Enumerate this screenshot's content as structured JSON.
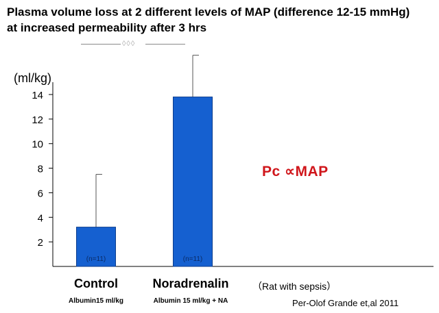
{
  "title": "Plasma volume loss at 2 different levels of MAP (difference 12-15 mmHg) at increased permeability after 3 hrs",
  "significance_marker": "◊◊◊",
  "unit_label": "(ml/kg)",
  "callout": "Pc ∝MAP",
  "groups": [
    {
      "name": "Control",
      "sub": "Albumin15 ml/kg"
    },
    {
      "name": "Noradrenalin",
      "sub": "Albumin 15 ml/kg + NA"
    }
  ],
  "note": "（Rat with sepsis）",
  "citation": "Per-Olof Grande et,al 2011",
  "colors": {
    "bar": "#1560d0",
    "bar_edge": "#0b3c8c",
    "callout": "#d0161b"
  },
  "chart_data": {
    "type": "bar",
    "categories": [
      "Control",
      "Noradrenalin"
    ],
    "values": [
      3.2,
      13.8
    ],
    "error_upper": [
      7.5,
      17.2
    ],
    "bar_labels": [
      "(n=11)",
      "(n=11)"
    ],
    "ylabel": "(ml/kg)",
    "yticks": [
      2,
      4,
      6,
      8,
      10,
      12,
      14
    ],
    "ylim": [
      0,
      15
    ],
    "grid": false
  }
}
